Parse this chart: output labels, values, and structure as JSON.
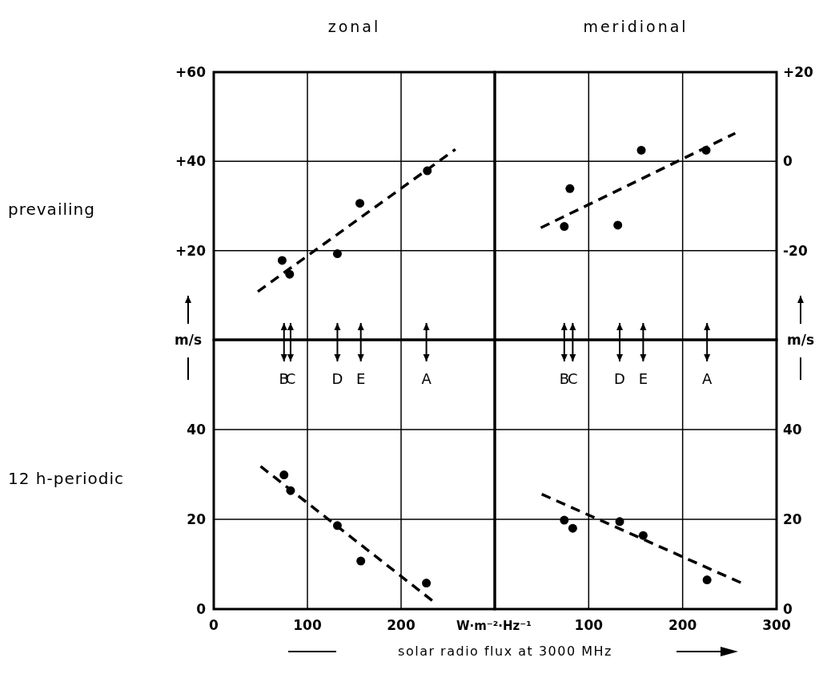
{
  "chart_data": [
    {
      "type": "scatter",
      "title": "zonal",
      "subtitle": "prevailing",
      "ylabel": "m/s",
      "xlim": [
        0,
        300
      ],
      "xticks": [
        0,
        100,
        200,
        300
      ],
      "ylim": [
        0,
        60
      ],
      "yticks": [
        {
          "value": 20,
          "label": "+20"
        },
        {
          "value": 40,
          "label": "+40"
        },
        {
          "value": 60,
          "label": "+60"
        }
      ],
      "tick_labels": "y",
      "grid": true,
      "series": [
        {
          "marker": "circle",
          "color": "#000000",
          "x": [
            73,
            81,
            132,
            156,
            228
          ],
          "values": [
            17.8,
            14.7,
            19.3,
            30.6,
            37.9
          ]
        },
        {
          "type": "line",
          "line_style": "dashed",
          "color": "#000000",
          "x": [
            47,
            258
          ],
          "values": [
            10.8,
            42.7
          ]
        }
      ]
    },
    {
      "type": "scatter",
      "title": "meridional",
      "ylabel": "m/s",
      "xlim": [
        0,
        300
      ],
      "xticks": [
        0,
        100,
        200,
        300
      ],
      "ylim": [
        -40,
        20
      ],
      "yticks": [
        -20,
        0,
        {
          "value": 20,
          "label": "+20"
        }
      ],
      "tick_labels": "y",
      "grid": true,
      "series": [
        {
          "marker": "circle",
          "color": "#000000",
          "x": [
            74,
            80,
            131,
            156,
            225
          ],
          "values": [
            -14.6,
            -6.1,
            -14.3,
            2.5,
            2.5
          ]
        },
        {
          "type": "line",
          "line_style": "dashed",
          "color": "#000000",
          "x": [
            49,
            256
          ],
          "values": [
            -14.9,
            6.3
          ]
        }
      ]
    },
    {
      "type": "scatter",
      "subtitle": "12 h-periodic",
      "xlabel": "W·m⁻²·Hz⁻¹",
      "xlim": [
        0,
        300
      ],
      "xticks": [
        0,
        100,
        200
      ],
      "ylim": [
        0,
        60
      ],
      "yticks": [
        0,
        20,
        40
      ],
      "grid": true,
      "annotations": [
        "B",
        "C",
        "D",
        "E",
        "A"
      ],
      "series": [
        {
          "marker": "circle",
          "color": "#000000",
          "x": [
            75,
            82,
            132,
            157,
            227
          ],
          "values": [
            29.9,
            26.4,
            18.6,
            10.7,
            5.8
          ]
        },
        {
          "type": "line",
          "line_style": "dashed",
          "color": "#000000",
          "x": [
            50,
            235
          ],
          "values": [
            31.8,
            1.6
          ]
        }
      ]
    },
    {
      "type": "scatter",
      "xlabel": "solar radio flux at 3000 MHz",
      "xlim": [
        0,
        300
      ],
      "xticks": [
        100,
        200,
        300
      ],
      "ylim": [
        0,
        60
      ],
      "yticks": [
        0,
        20,
        40
      ],
      "grid": true,
      "annotations": [
        "B",
        "C",
        "D",
        "E",
        "A"
      ],
      "series": [
        {
          "marker": "circle",
          "color": "#000000",
          "x": [
            74,
            83,
            133,
            158,
            226
          ],
          "values": [
            19.8,
            18.0,
            19.5,
            16.4,
            6.5
          ]
        },
        {
          "type": "line",
          "line_style": "dashed",
          "color": "#000000",
          "x": [
            50,
            265
          ],
          "values": [
            25.6,
            5.6
          ]
        }
      ]
    }
  ]
}
